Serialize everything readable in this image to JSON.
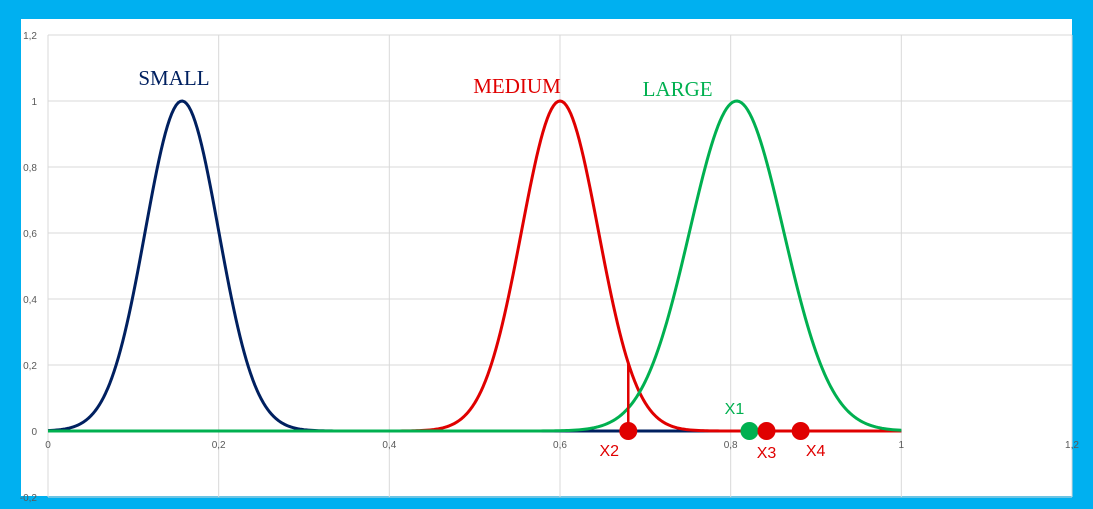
{
  "chart_data": {
    "type": "line",
    "title": "",
    "xlabel": "",
    "ylabel": "",
    "xlim": [
      0,
      1.2
    ],
    "ylim": [
      -0.2,
      1.2
    ],
    "grid": true,
    "x_ticks": [
      0,
      0.2,
      0.4,
      0.6,
      0.8,
      1,
      1.2
    ],
    "x_tick_labels": [
      "0",
      "0,2",
      "0,4",
      "0,6",
      "0,8",
      "1",
      "1,2"
    ],
    "y_ticks": [
      -0.2,
      0,
      0.2,
      0.4,
      0.6,
      0.8,
      1,
      1.2
    ],
    "y_tick_labels": [
      "-0,2",
      "0",
      "0,2",
      "0,4",
      "0,6",
      "0,8",
      "1",
      "1,2"
    ],
    "series": [
      {
        "name": "SMALL",
        "color": "#002060",
        "mean": 0.157,
        "sigma": 0.043,
        "xrange": [
          0,
          1
        ]
      },
      {
        "name": "MEDIUM",
        "color": "#e00000",
        "mean": 0.6,
        "sigma": 0.045,
        "xrange": [
          0,
          1
        ]
      },
      {
        "name": "LARGE",
        "color": "#00b050",
        "mean": 0.807,
        "sigma": 0.055,
        "xrange": [
          0,
          1
        ]
      }
    ],
    "points": [
      {
        "label": "X1",
        "x": 0.822,
        "y": 0,
        "color": "#00b050"
      },
      {
        "label": "X2",
        "x": 0.68,
        "y": 0,
        "color": "#e00000"
      },
      {
        "label": "X3",
        "x": 0.842,
        "y": 0,
        "color": "#e00000"
      },
      {
        "label": "X4",
        "x": 0.882,
        "y": 0,
        "color": "#e00000"
      }
    ],
    "marker_line": {
      "x": 0.68,
      "y_from": 0,
      "y_to": 0.21,
      "color": "#e00000"
    }
  }
}
